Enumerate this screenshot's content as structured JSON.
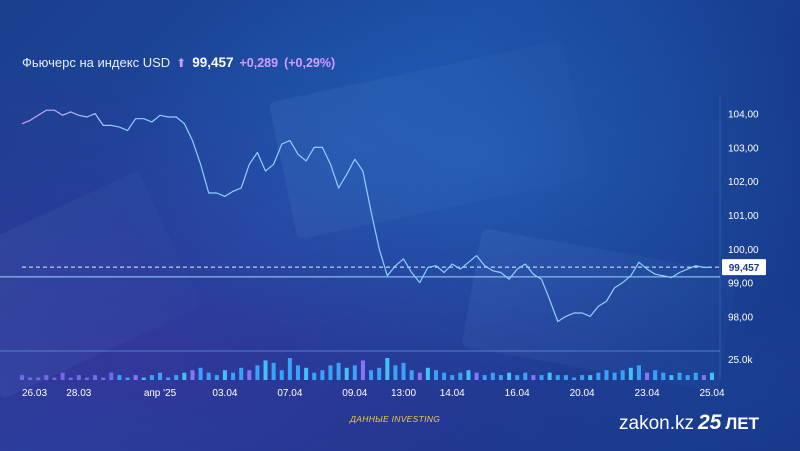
{
  "header": {
    "title": "Фьючерс на индекс USD",
    "arrow_icon": "up-arrow-icon",
    "price": "99,457",
    "change": "+0,289",
    "change_pct": "(+0,29%)"
  },
  "source": "ДАННЫЕ INVESTING",
  "brand": {
    "name": "zakon.kz",
    "years": "25",
    "years_word": "ЛЕТ"
  },
  "colors": {
    "line": "#8fd0ff",
    "line_start": "#d99cf7",
    "accent": "#d59cff",
    "gold": "#f2c94c"
  },
  "chart_data": {
    "type": "line",
    "title": "Фьючерс на индекс USD",
    "ylim": [
      97.45,
      104.55
    ],
    "y_ticks": [
      "104,00",
      "103,00",
      "102,00",
      "101,00",
      "100,00",
      "99,00",
      "98,00"
    ],
    "y_tick_values": [
      104,
      103,
      102,
      101,
      100,
      99,
      98
    ],
    "current_value": 99.457,
    "current_label": "99,457",
    "reference_value": 99.17,
    "volume_tick_label": "25.0k",
    "x_tick_labels": [
      "26.03",
      "28.03",
      "апр '25",
      "03.04",
      "07.04",
      "09.04",
      "13:00",
      "14.04",
      "16.04",
      "20.04",
      "23.04",
      "25.04"
    ],
    "x_tick_index": [
      0,
      7,
      17,
      25,
      33,
      41,
      47,
      53,
      61,
      69,
      77,
      85
    ],
    "values": [
      103.7,
      103.8,
      103.95,
      104.1,
      104.1,
      103.95,
      104.05,
      103.95,
      103.9,
      104.0,
      103.65,
      103.65,
      103.6,
      103.5,
      103.85,
      103.85,
      103.75,
      103.95,
      103.9,
      103.9,
      103.7,
      103.2,
      102.5,
      101.65,
      101.65,
      101.55,
      101.7,
      101.8,
      102.5,
      102.85,
      102.3,
      102.5,
      103.1,
      103.2,
      102.8,
      102.6,
      103.0,
      103.0,
      102.5,
      101.8,
      102.2,
      102.65,
      102.3,
      101.1,
      100.0,
      99.2,
      99.5,
      99.7,
      99.3,
      99.0,
      99.45,
      99.5,
      99.3,
      99.55,
      99.4,
      99.6,
      99.8,
      99.5,
      99.35,
      99.3,
      99.1,
      99.4,
      99.55,
      99.25,
      99.1,
      98.5,
      97.85,
      98.0,
      98.1,
      98.1,
      98.0,
      98.3,
      98.45,
      98.85,
      99.0,
      99.2,
      99.6,
      99.4,
      99.25,
      99.2,
      99.15,
      99.3,
      99.4,
      99.5,
      99.45,
      99.457
    ],
    "volumes": [
      2,
      1,
      1,
      2,
      1,
      3,
      1,
      2,
      1,
      2,
      1,
      3,
      2,
      1,
      2,
      1,
      2,
      3,
      1,
      2,
      3,
      4,
      5,
      3,
      2,
      4,
      3,
      5,
      4,
      6,
      8,
      7,
      4,
      9,
      6,
      5,
      3,
      4,
      6,
      7,
      5,
      6,
      8,
      4,
      5,
      9,
      6,
      7,
      4,
      3,
      5,
      4,
      3,
      2,
      3,
      4,
      3,
      2,
      3,
      2,
      3,
      2,
      3,
      2,
      2,
      3,
      2,
      2,
      1,
      2,
      2,
      3,
      4,
      3,
      4,
      5,
      6,
      3,
      4,
      3,
      2,
      3,
      2,
      3,
      2,
      3
    ],
    "grid": false
  }
}
